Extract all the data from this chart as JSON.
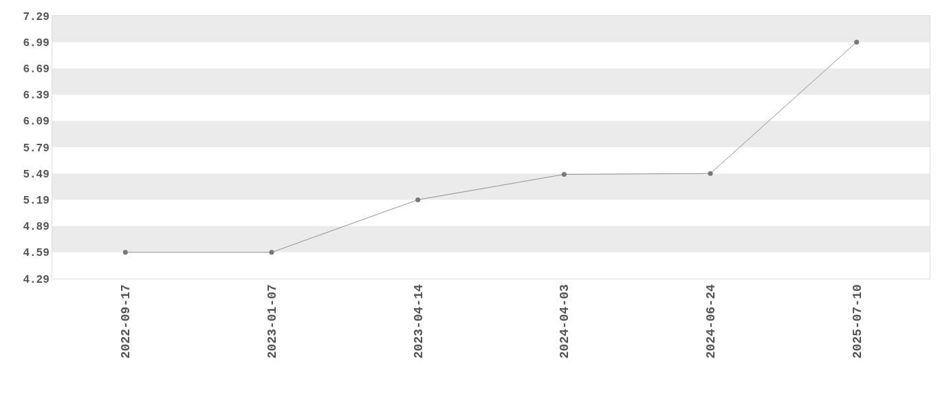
{
  "chart_data": {
    "type": "line",
    "categories": [
      "2022-09-17",
      "2023-01-07",
      "2023-04-14",
      "2024-04-03",
      "2024-06-24",
      "2025-07-10"
    ],
    "series": [
      {
        "color": "#777777",
        "values": [
          4.59,
          4.59,
          5.19,
          5.48,
          5.49,
          6.99
        ]
      }
    ],
    "marker": "circle",
    "line_style": "solid",
    "ylim": [
      4.29,
      7.29
    ],
    "yticks": [
      4.29,
      4.59,
      4.89,
      5.19,
      5.49,
      5.79,
      6.09,
      6.39,
      6.69,
      6.99,
      7.29
    ],
    "bands": [
      {
        "axis": "y",
        "from": 4.59,
        "to": 4.89,
        "color": "#ebebeb"
      },
      {
        "axis": "y",
        "from": 5.19,
        "to": 5.49,
        "color": "#ebebeb"
      },
      {
        "axis": "y",
        "from": 5.79,
        "to": 6.09,
        "color": "#ebebeb"
      },
      {
        "axis": "y",
        "from": 6.39,
        "to": 6.69,
        "color": "#ebebeb"
      },
      {
        "axis": "y",
        "from": 6.99,
        "to": 7.29,
        "color": "#ebebeb"
      }
    ],
    "grid": false
  }
}
